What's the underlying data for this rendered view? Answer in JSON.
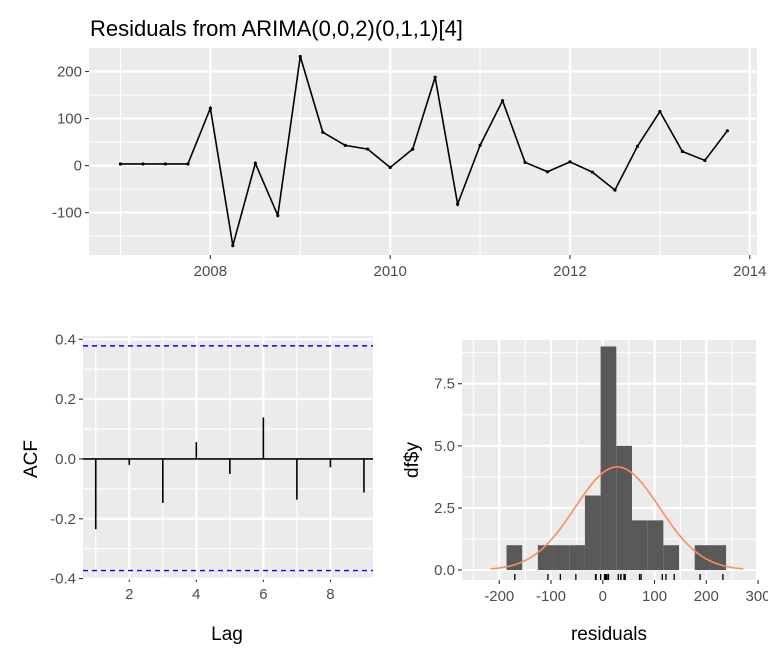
{
  "chart_data": [
    {
      "type": "line",
      "title": "Residuals from ARIMA(0,0,2)(0,1,1)[4]",
      "xlabel": "",
      "ylabel": "",
      "xlim": [
        2006.65,
        2014.08
      ],
      "ylim": [
        -190,
        250
      ],
      "xticks": [
        2008,
        2010,
        2012,
        2014
      ],
      "yticks": [
        -100,
        0,
        100,
        200
      ],
      "grid": true,
      "x": [
        2007,
        2007.25,
        2007.5,
        2007.75,
        2008,
        2008.25,
        2008.5,
        2008.75,
        2009,
        2009.25,
        2009.5,
        2009.75,
        2010,
        2010.25,
        2010.5,
        2010.75,
        2011,
        2011.25,
        2011.5,
        2011.75,
        2012,
        2012.25,
        2012.5,
        2012.75,
        2013,
        2013.25,
        2013.5,
        2013.75
      ],
      "y": [
        3.5,
        3.5,
        3.5,
        3.5,
        122,
        -170,
        5,
        -106,
        232,
        71,
        43,
        35,
        -4,
        35,
        188,
        -82,
        43,
        138,
        7,
        -13,
        8,
        -14,
        -52,
        41,
        115,
        30,
        11,
        74
      ]
    },
    {
      "type": "bar",
      "title": "",
      "xlabel": "Lag",
      "ylabel": "ACF",
      "xlim": [
        0.62,
        9.27
      ],
      "ylim": [
        -0.398,
        0.411
      ],
      "xticks": [
        2,
        4,
        6,
        8
      ],
      "yticks": [
        -0.4,
        -0.2,
        0.0,
        0.2,
        0.4
      ],
      "ytick_labels": [
        "-0.4",
        "-0.2",
        "0.0",
        "0.2",
        "0.4"
      ],
      "lags": [
        1,
        2,
        3,
        4,
        5,
        6,
        7,
        8,
        9
      ],
      "values": [
        -0.235,
        -0.02,
        -0.147,
        0.056,
        -0.05,
        0.139,
        -0.136,
        -0.028,
        -0.112
      ],
      "ci": [
        0.378,
        -0.373
      ],
      "ci_color": "#0000ff"
    },
    {
      "type": "bar",
      "title": "",
      "xlabel": "residuals",
      "ylabel": "df$y",
      "xlim": [
        -272,
        296
      ],
      "ylim": [
        -0.4,
        9.26
      ],
      "xticks": [
        -200,
        -100,
        0,
        100,
        200,
        300
      ],
      "yticks": [
        0,
        2.5,
        5,
        7.5
      ],
      "ytick_labels": [
        "0.0",
        "2.5",
        "5.0",
        "7.5"
      ],
      "bin_start": -186,
      "bin_width": 30.3,
      "counts": [
        1,
        0,
        1,
        1,
        1,
        3,
        9,
        5,
        2,
        2,
        1,
        0,
        1,
        1
      ],
      "bar_color": "#595959",
      "normal_curve": {
        "mean": 28,
        "sd": 81.5,
        "n": 28,
        "color": "#ff8c5a"
      }
    }
  ]
}
